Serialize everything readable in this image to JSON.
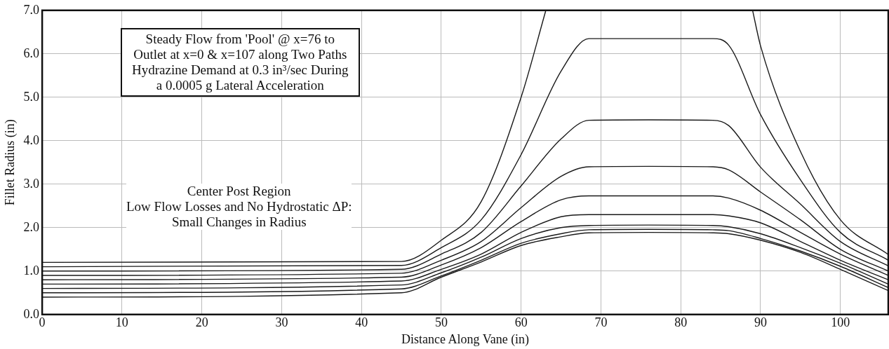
{
  "chart_data": {
    "type": "line",
    "xlabel": "Distance Along Vane (in)",
    "ylabel": "Fillet Radius (in)",
    "xlim": [
      0,
      106
    ],
    "xticks": [
      0,
      10,
      20,
      30,
      40,
      50,
      60,
      70,
      80,
      90,
      100
    ],
    "ylim": [
      0,
      7
    ],
    "yticks": [
      {
        "value": 0,
        "label": "0.0"
      },
      {
        "value": 1,
        "label": "1.0"
      },
      {
        "value": 2,
        "label": "2.0"
      },
      {
        "value": 3,
        "label": "3.0"
      },
      {
        "value": 4,
        "label": "4.0"
      },
      {
        "value": 5,
        "label": "5.0"
      },
      {
        "value": 6,
        "label": "6.0"
      },
      {
        "value": 7,
        "label": "7.0"
      }
    ],
    "grid": true,
    "legend": false,
    "marker": "none",
    "line_style": "solid",
    "annotations": [
      "Steady Flow from 'Pool' @ x=76 to\nOutlet at x=0 & x=107 along Two Paths\nHydrazine Demand at 0.3 in³/sec During\na 0.0005 g Lateral Acceleration",
      "Center Post Region\nLow Flow Losses and No Hydrostatic ΔP:\nSmall Changes in Radius"
    ],
    "series": [
      {
        "color": "#1a1a1a",
        "x": [
          0,
          45,
          50,
          55,
          60,
          63.1,
          76,
          89,
          90,
          95,
          100,
          106
        ],
        "values": [
          1.2,
          1.22,
          1.71,
          2.6,
          5.0,
          7.0,
          null,
          7.0,
          6.18,
          3.75,
          2.18,
          1.38
        ]
      },
      {
        "color": "#1a1a1a",
        "x": [
          0,
          45,
          50,
          55,
          60,
          65,
          68.5,
          76,
          84,
          86,
          90,
          95,
          100,
          106
        ],
        "values": [
          1.1,
          1.13,
          1.54,
          2.18,
          3.68,
          5.6,
          6.35,
          6.35,
          6.35,
          6.2,
          4.6,
          3.1,
          1.89,
          1.25
        ]
      },
      {
        "color": "#1a1a1a",
        "x": [
          0,
          45,
          50,
          55,
          60,
          65,
          68.5,
          76,
          84,
          86,
          90,
          95,
          100,
          106
        ],
        "values": [
          1.0,
          1.04,
          1.39,
          1.89,
          2.96,
          4.04,
          4.47,
          4.48,
          4.47,
          4.35,
          3.39,
          2.54,
          1.68,
          1.12
        ]
      },
      {
        "color": "#1a1a1a",
        "x": [
          0,
          45,
          50,
          55,
          60,
          65,
          68.5,
          76,
          84,
          86,
          90,
          95,
          100,
          106
        ],
        "values": [
          0.9,
          0.95,
          1.25,
          1.68,
          2.46,
          3.18,
          3.4,
          3.41,
          3.4,
          3.33,
          2.82,
          2.18,
          1.5,
          1.0
        ]
      },
      {
        "color": "#1a1a1a",
        "x": [
          0,
          45,
          50,
          55,
          60,
          65,
          68.5,
          76,
          84,
          86,
          90,
          95,
          100,
          106
        ],
        "values": [
          0.8,
          0.86,
          1.14,
          1.54,
          2.14,
          2.64,
          2.73,
          2.73,
          2.73,
          2.68,
          2.4,
          1.89,
          1.39,
          0.9
        ]
      },
      {
        "color": "#1a1a1a",
        "x": [
          0,
          45,
          50,
          55,
          60,
          65,
          68.5,
          76,
          84,
          86,
          90,
          95,
          100,
          106
        ],
        "values": [
          0.7,
          0.77,
          1.04,
          1.39,
          1.89,
          2.25,
          2.3,
          2.3,
          2.3,
          2.27,
          2.11,
          1.68,
          1.25,
          0.8
        ]
      },
      {
        "color": "#1a1a1a",
        "x": [
          0,
          45,
          50,
          55,
          60,
          65,
          68.5,
          76,
          84,
          86,
          90,
          95,
          100,
          106
        ],
        "values": [
          0.6,
          0.68,
          0.96,
          1.32,
          1.75,
          2.0,
          2.05,
          2.06,
          2.05,
          2.02,
          1.86,
          1.54,
          1.18,
          0.7
        ]
      },
      {
        "color": "#1a1a1a",
        "x": [
          0,
          45,
          50,
          55,
          60,
          65,
          68.5,
          76,
          84,
          86,
          90,
          95,
          100,
          106
        ],
        "values": [
          0.5,
          0.59,
          0.89,
          1.25,
          1.64,
          1.86,
          1.95,
          1.96,
          1.95,
          1.93,
          1.75,
          1.46,
          1.11,
          0.62
        ]
      },
      {
        "color": "#1a1a1a",
        "x": [
          0,
          45,
          50,
          55,
          60,
          65,
          68.5,
          76,
          84,
          86,
          90,
          95,
          100,
          106
        ],
        "values": [
          0.4,
          0.5,
          0.86,
          1.21,
          1.59,
          1.79,
          1.88,
          1.89,
          1.88,
          1.86,
          1.71,
          1.43,
          1.04,
          0.55
        ]
      }
    ]
  }
}
